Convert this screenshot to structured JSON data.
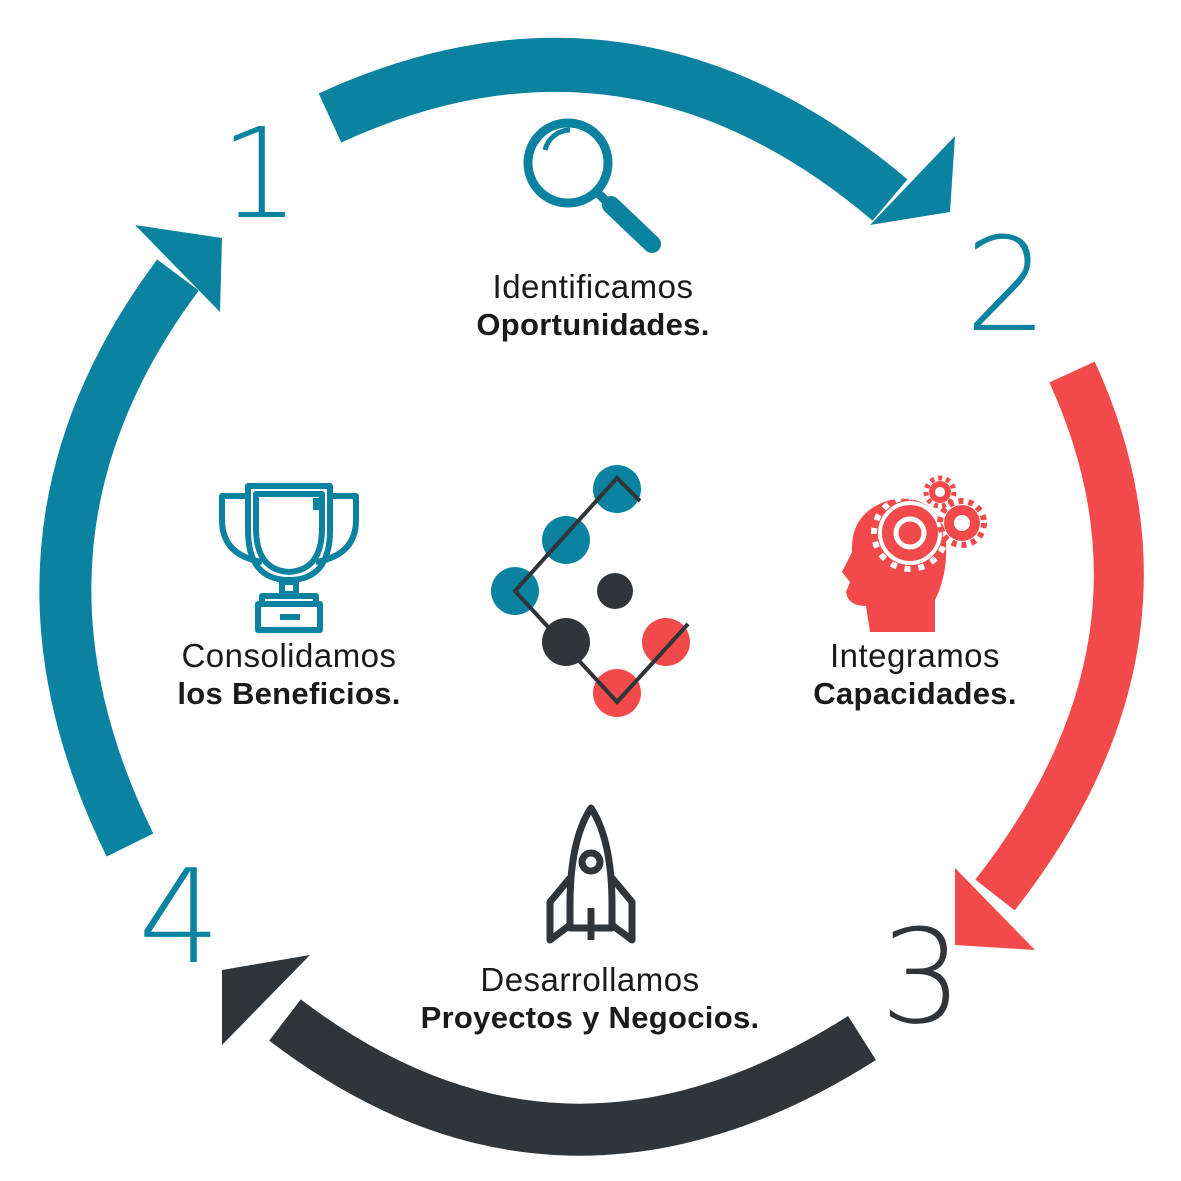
{
  "colors": {
    "teal": "#0b82a0",
    "red": "#f24a4a",
    "dark": "#2f3539",
    "text": "#1a1a1a"
  },
  "steps": [
    {
      "number": "1",
      "line1": "Identificamos",
      "line2": "Oportunidades.",
      "icon": "magnifying-glass-icon"
    },
    {
      "number": "2",
      "line1": "Integramos",
      "line2": "Capacidades.",
      "icon": "head-gears-icon"
    },
    {
      "number": "3",
      "line1": "Desarrollamos",
      "line2": "Proyectos y Negocios.",
      "icon": "rocket-icon"
    },
    {
      "number": "4",
      "line1": "Consolidamos",
      "line2": "los Beneficios.",
      "icon": "trophy-icon"
    }
  ],
  "center_logo": "dots-logo-icon"
}
